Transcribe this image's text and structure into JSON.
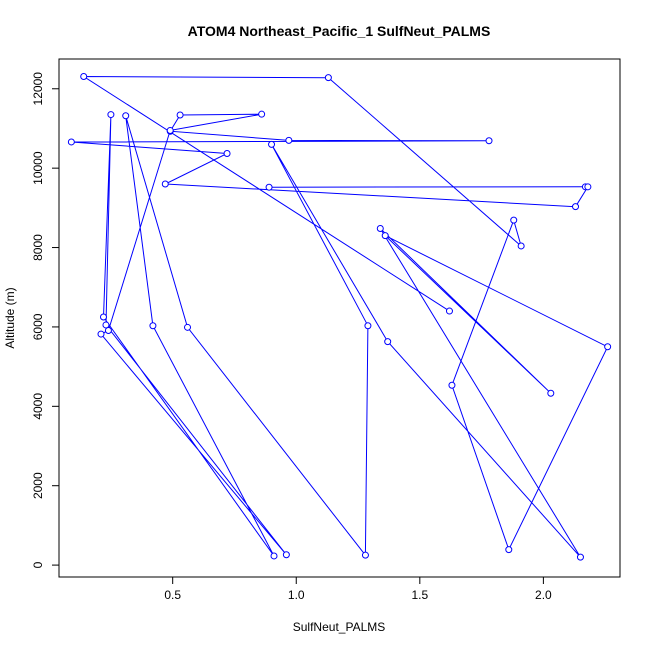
{
  "chart_data": {
    "type": "line",
    "title": "ATOM4 Northeast_Pacific_1 SulfNeut_PALMS",
    "xlabel": "SulfNeut_PALMS",
    "ylabel": "Altitude (m)",
    "xlim": [
      0.04,
      2.31
    ],
    "ylim": [
      -300,
      12750
    ],
    "x_ticks": [
      0.5,
      1.0,
      1.5,
      2.0
    ],
    "x_tick_labels": [
      "0.5",
      "1.0",
      "1.5",
      "2.0"
    ],
    "y_ticks": [
      0,
      2000,
      4000,
      6000,
      8000,
      10000,
      12000
    ],
    "y_tick_labels": [
      "0",
      "2000",
      "4000",
      "6000",
      "8000",
      "10000",
      "12000"
    ],
    "grid": false,
    "markers": "open-circle",
    "color": "#0000ff",
    "series": [
      {
        "points": [
          {
            "x": 0.89,
            "y": 9520
          },
          {
            "x": 2.17,
            "y": 9530
          },
          {
            "x": 2.18,
            "y": 9530
          },
          {
            "x": 2.13,
            "y": 9030
          },
          {
            "x": 0.47,
            "y": 9600
          },
          {
            "x": 0.72,
            "y": 10370
          },
          {
            "x": 0.09,
            "y": 10660
          },
          {
            "x": 1.78,
            "y": 10690
          },
          {
            "x": 0.97,
            "y": 10700
          },
          {
            "x": 0.49,
            "y": 10930
          },
          {
            "x": 0.53,
            "y": 11340
          },
          {
            "x": 0.86,
            "y": 11360
          },
          {
            "x": 0.49,
            "y": 10950
          },
          {
            "x": 0.24,
            "y": 5910
          },
          {
            "x": 0.21,
            "y": 5820
          },
          {
            "x": 0.96,
            "y": 260
          },
          {
            "x": 0.23,
            "y": 6050
          },
          {
            "x": 0.25,
            "y": 11350
          },
          {
            "x": 0.22,
            "y": 6250
          },
          {
            "x": 0.91,
            "y": 230
          },
          {
            "x": 0.42,
            "y": 6030
          },
          {
            "x": 0.31,
            "y": 11320
          },
          {
            "x": 0.56,
            "y": 5990
          },
          {
            "x": 1.28,
            "y": 250
          },
          {
            "x": 1.29,
            "y": 6030
          },
          {
            "x": 0.9,
            "y": 10600
          },
          {
            "x": 1.37,
            "y": 5630
          },
          {
            "x": 2.15,
            "y": 200
          },
          {
            "x": 1.34,
            "y": 8480
          },
          {
            "x": 2.03,
            "y": 4330
          },
          {
            "x": 1.36,
            "y": 8300
          },
          {
            "x": 2.26,
            "y": 5500
          },
          {
            "x": 1.86,
            "y": 390
          },
          {
            "x": 1.63,
            "y": 4530
          },
          {
            "x": 1.88,
            "y": 8690
          },
          {
            "x": 1.91,
            "y": 8040
          },
          {
            "x": 1.13,
            "y": 12280
          },
          {
            "x": 0.14,
            "y": 12310
          },
          {
            "x": 1.62,
            "y": 6400
          }
        ]
      }
    ]
  }
}
